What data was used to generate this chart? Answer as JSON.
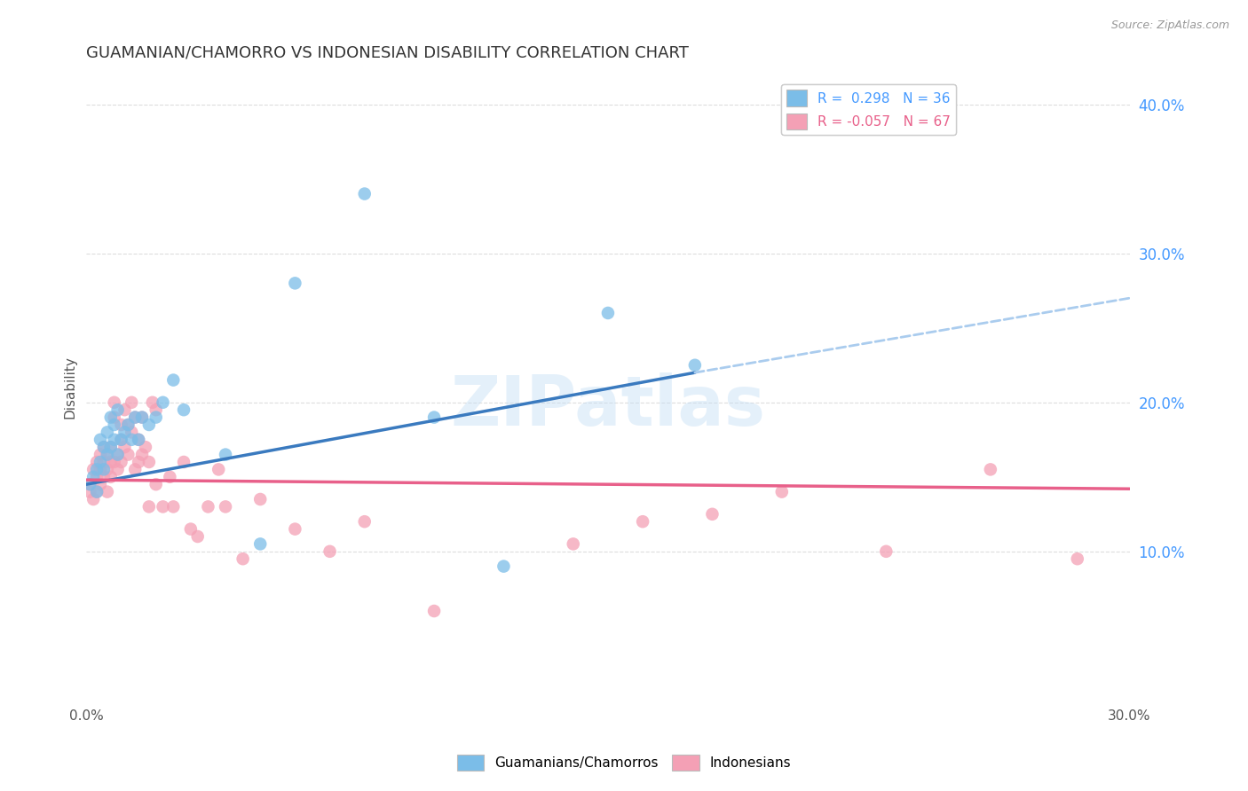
{
  "title": "GUAMANIAN/CHAMORRO VS INDONESIAN DISABILITY CORRELATION CHART",
  "source": "Source: ZipAtlas.com",
  "ylabel": "Disability",
  "right_yticks": [
    10.0,
    20.0,
    30.0,
    40.0
  ],
  "xlim": [
    0.0,
    0.3
  ],
  "ylim": [
    0.0,
    0.42
  ],
  "guamanian_R": 0.298,
  "guamanian_N": 36,
  "indonesian_R": -0.057,
  "indonesian_N": 67,
  "blue_color": "#7bbde8",
  "pink_color": "#f4a0b5",
  "blue_line_color": "#3a7abf",
  "pink_line_color": "#e8608a",
  "dashed_line_color": "#aaccee",
  "background_color": "#ffffff",
  "grid_color": "#dddddd",
  "title_color": "#333333",
  "axis_label_color": "#4499ff",
  "watermark": "ZIPatlas",
  "guamanian_x": [
    0.001,
    0.002,
    0.003,
    0.003,
    0.004,
    0.004,
    0.005,
    0.005,
    0.006,
    0.006,
    0.007,
    0.007,
    0.008,
    0.008,
    0.009,
    0.009,
    0.01,
    0.011,
    0.012,
    0.013,
    0.014,
    0.015,
    0.016,
    0.018,
    0.02,
    0.022,
    0.025,
    0.028,
    0.04,
    0.05,
    0.06,
    0.08,
    0.1,
    0.12,
    0.15,
    0.175
  ],
  "guamanian_y": [
    0.145,
    0.15,
    0.14,
    0.155,
    0.175,
    0.16,
    0.17,
    0.155,
    0.18,
    0.165,
    0.19,
    0.17,
    0.175,
    0.185,
    0.165,
    0.195,
    0.175,
    0.18,
    0.185,
    0.175,
    0.19,
    0.175,
    0.19,
    0.185,
    0.19,
    0.2,
    0.215,
    0.195,
    0.165,
    0.105,
    0.28,
    0.34,
    0.19,
    0.09,
    0.26,
    0.225
  ],
  "indonesian_x": [
    0.001,
    0.001,
    0.002,
    0.002,
    0.003,
    0.003,
    0.003,
    0.004,
    0.004,
    0.004,
    0.005,
    0.005,
    0.005,
    0.006,
    0.006,
    0.006,
    0.007,
    0.007,
    0.007,
    0.008,
    0.008,
    0.008,
    0.009,
    0.009,
    0.01,
    0.01,
    0.01,
    0.011,
    0.011,
    0.012,
    0.012,
    0.013,
    0.013,
    0.014,
    0.014,
    0.015,
    0.015,
    0.016,
    0.016,
    0.017,
    0.018,
    0.018,
    0.019,
    0.02,
    0.02,
    0.022,
    0.024,
    0.025,
    0.028,
    0.03,
    0.032,
    0.035,
    0.038,
    0.04,
    0.045,
    0.05,
    0.06,
    0.07,
    0.08,
    0.1,
    0.14,
    0.16,
    0.18,
    0.2,
    0.23,
    0.26,
    0.285
  ],
  "indonesian_y": [
    0.145,
    0.14,
    0.155,
    0.135,
    0.15,
    0.16,
    0.14,
    0.155,
    0.145,
    0.165,
    0.16,
    0.15,
    0.17,
    0.155,
    0.165,
    0.14,
    0.16,
    0.15,
    0.17,
    0.16,
    0.2,
    0.19,
    0.155,
    0.165,
    0.175,
    0.16,
    0.185,
    0.17,
    0.195,
    0.165,
    0.185,
    0.18,
    0.2,
    0.19,
    0.155,
    0.16,
    0.175,
    0.165,
    0.19,
    0.17,
    0.13,
    0.16,
    0.2,
    0.195,
    0.145,
    0.13,
    0.15,
    0.13,
    0.16,
    0.115,
    0.11,
    0.13,
    0.155,
    0.13,
    0.095,
    0.135,
    0.115,
    0.1,
    0.12,
    0.06,
    0.105,
    0.12,
    0.125,
    0.14,
    0.1,
    0.155,
    0.095
  ],
  "blue_line_x": [
    0.0,
    0.175
  ],
  "blue_line_y": [
    0.145,
    0.22
  ],
  "dashed_line_x": [
    0.175,
    0.3
  ],
  "dashed_line_y": [
    0.22,
    0.27
  ],
  "pink_line_x": [
    0.0,
    0.3
  ],
  "pink_line_y": [
    0.148,
    0.142
  ]
}
